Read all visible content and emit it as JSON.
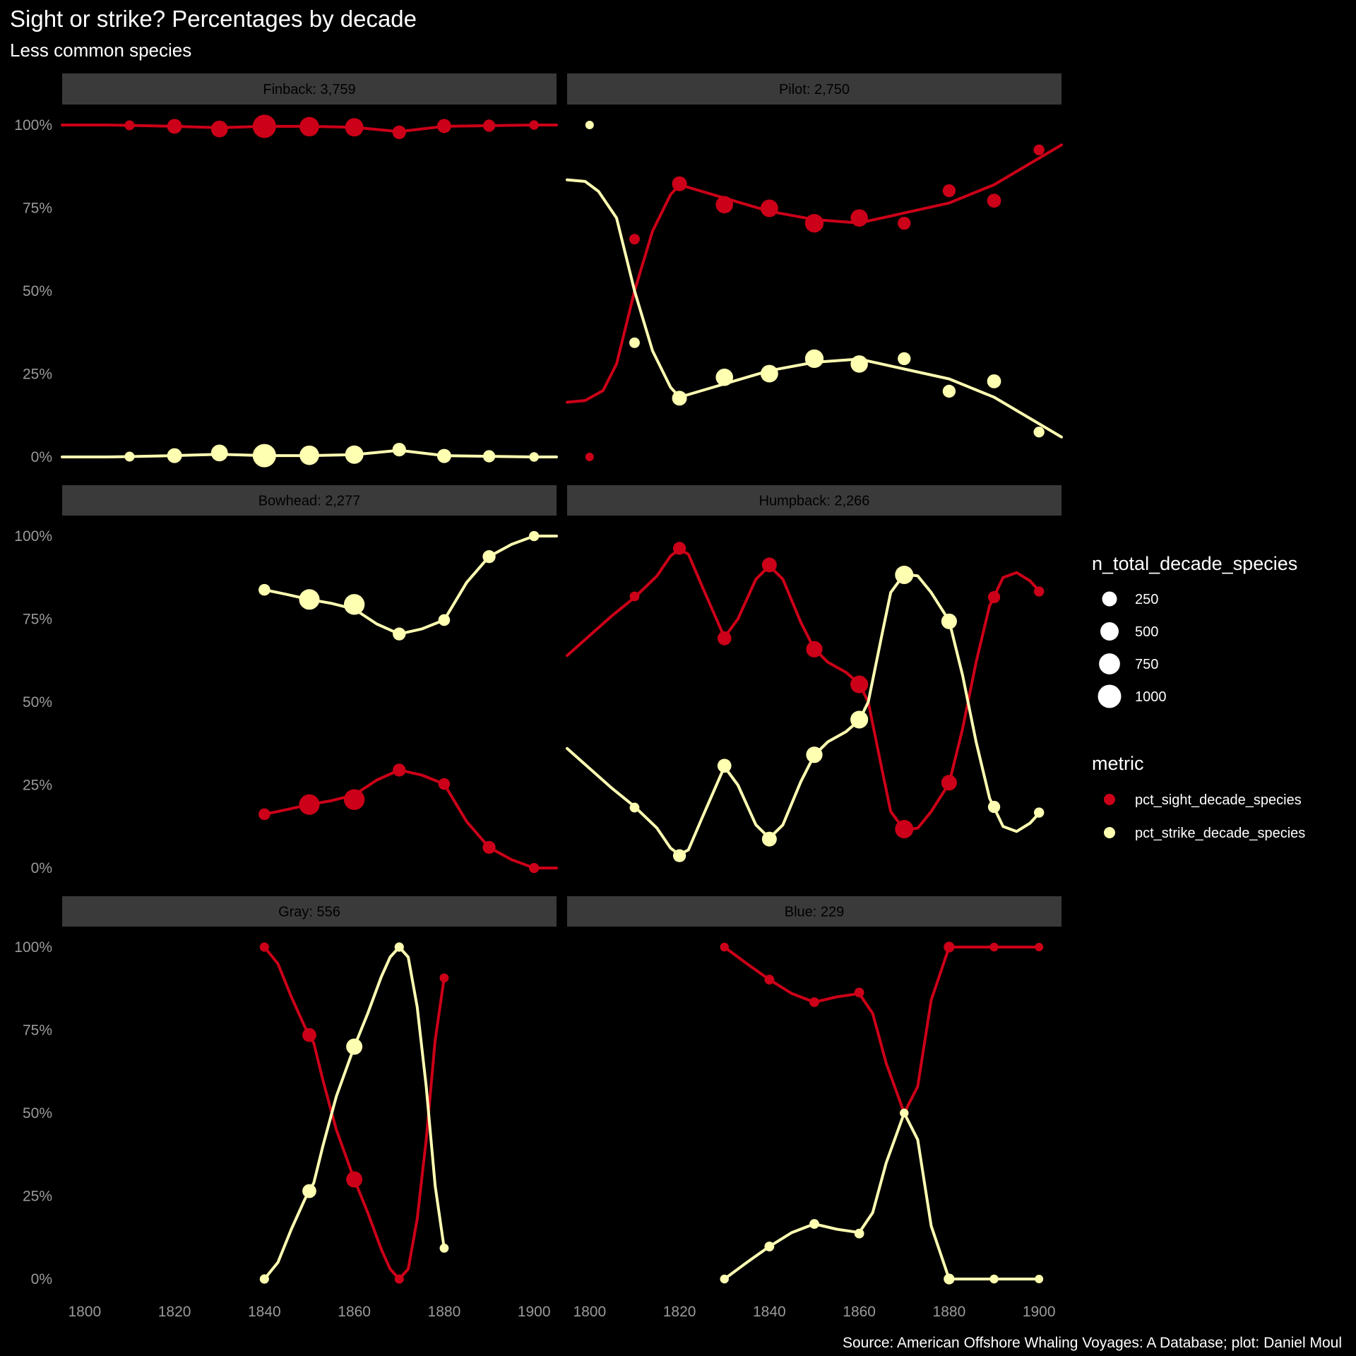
{
  "title": "Sight or strike? Percentages by decade",
  "subtitle": "Less common species",
  "caption": "Source: American Offshore Whaling Voyages: A Database; plot: Daniel Moul",
  "colors": {
    "background": "#000000",
    "strip": "#3a3a3a",
    "sight": "#cc0018",
    "strike": "#ffffb2",
    "tick_text": "#9a9a9a"
  },
  "chart_data": {
    "type": "scatter",
    "facet_by": "species",
    "x_ticks": [
      "1800",
      "1820",
      "1840",
      "1860",
      "1880",
      "1900"
    ],
    "y_ticks": [
      "0%",
      "25%",
      "50%",
      "75%",
      "100%"
    ],
    "xlim": [
      1795,
      1905
    ],
    "ylim": [
      0,
      100
    ],
    "legend": {
      "size_title": "n_total_decade_species",
      "size_breaks": [
        {
          "label": "250",
          "value": 250
        },
        {
          "label": "500",
          "value": 500
        },
        {
          "label": "750",
          "value": 750
        },
        {
          "label": "1000",
          "value": 1000
        }
      ],
      "color_title": "metric",
      "color_entries": [
        {
          "label": "pct_sight_decade_species",
          "key": "sight"
        },
        {
          "label": "pct_strike_decade_species",
          "key": "strike"
        }
      ],
      "position": "right"
    },
    "panels": [
      {
        "label": "Finback: 3,759",
        "x": [
          1810,
          1820,
          1830,
          1840,
          1850,
          1860,
          1870,
          1880,
          1890,
          1900
        ],
        "n": [
          45,
          250,
          380,
          1000,
          600,
          500,
          180,
          210,
          120,
          35
        ],
        "sight": [
          99.9,
          99.6,
          98.8,
          99.6,
          99.5,
          99.3,
          97.8,
          99.7,
          99.8,
          100
        ],
        "strike": [
          0.1,
          0.4,
          1.2,
          0.4,
          0.5,
          0.7,
          2.2,
          0.3,
          0.2,
          0
        ],
        "sight_smooth": [
          [
            1795,
            100
          ],
          [
            1805,
            100
          ],
          [
            1810,
            99.9
          ],
          [
            1820,
            99.6
          ],
          [
            1830,
            99.2
          ],
          [
            1840,
            99.6
          ],
          [
            1850,
            99.6
          ],
          [
            1860,
            99.3
          ],
          [
            1870,
            98.0
          ],
          [
            1880,
            99.6
          ],
          [
            1890,
            99.8
          ],
          [
            1900,
            100
          ],
          [
            1905,
            100
          ]
        ],
        "strike_smooth": [
          [
            1795,
            0
          ],
          [
            1805,
            0
          ],
          [
            1810,
            0.1
          ],
          [
            1820,
            0.4
          ],
          [
            1830,
            0.8
          ],
          [
            1840,
            0.4
          ],
          [
            1850,
            0.4
          ],
          [
            1860,
            0.7
          ],
          [
            1870,
            2.0
          ],
          [
            1880,
            0.4
          ],
          [
            1890,
            0.2
          ],
          [
            1900,
            0
          ],
          [
            1905,
            0
          ]
        ]
      },
      {
        "label": "Pilot: 2,750",
        "x": [
          1800,
          1810,
          1820,
          1830,
          1840,
          1850,
          1860,
          1870,
          1880,
          1890,
          1900
        ],
        "n": [
          15,
          60,
          250,
          420,
          440,
          520,
          420,
          150,
          150,
          200,
          70
        ],
        "sight": [
          0,
          65.6,
          82.3,
          76.0,
          74.9,
          70.4,
          72.0,
          70.4,
          80.2,
          77.2,
          92.5
        ],
        "strike": [
          100,
          34.4,
          17.7,
          24.0,
          25.1,
          29.6,
          28.0,
          29.6,
          19.8,
          22.8,
          7.5
        ],
        "sight_smooth": [
          [
            1795,
            16.5
          ],
          [
            1799,
            17
          ],
          [
            1803,
            20
          ],
          [
            1806,
            28
          ],
          [
            1810,
            50
          ],
          [
            1814,
            68
          ],
          [
            1818,
            79
          ],
          [
            1820,
            82
          ],
          [
            1825,
            80
          ],
          [
            1830,
            78
          ],
          [
            1840,
            74
          ],
          [
            1850,
            71.5
          ],
          [
            1860,
            70.5
          ],
          [
            1870,
            73.5
          ],
          [
            1880,
            76.5
          ],
          [
            1890,
            82
          ],
          [
            1900,
            90
          ],
          [
            1905,
            94
          ]
        ],
        "strike_smooth": [
          [
            1795,
            83.5
          ],
          [
            1799,
            83
          ],
          [
            1802,
            80
          ],
          [
            1806,
            72
          ],
          [
            1810,
            50
          ],
          [
            1814,
            32
          ],
          [
            1818,
            21
          ],
          [
            1820,
            18
          ],
          [
            1825,
            20
          ],
          [
            1830,
            22
          ],
          [
            1840,
            26
          ],
          [
            1850,
            28.5
          ],
          [
            1860,
            29.5
          ],
          [
            1870,
            26.5
          ],
          [
            1880,
            23.5
          ],
          [
            1890,
            18
          ],
          [
            1900,
            10
          ],
          [
            1905,
            6
          ]
        ]
      },
      {
        "label": "Bowhead: 2,277",
        "x": [
          1840,
          1850,
          1860,
          1870,
          1880,
          1890,
          1900
        ],
        "n": [
          100,
          700,
          720,
          150,
          100,
          150,
          50
        ],
        "sight": [
          16.2,
          19.1,
          20.6,
          29.5,
          25.3,
          6.2,
          0
        ],
        "strike": [
          83.8,
          80.9,
          79.4,
          70.5,
          74.7,
          93.8,
          100
        ],
        "sight_smooth": [
          [
            1840,
            16.2
          ],
          [
            1845,
            17.6
          ],
          [
            1850,
            19.1
          ],
          [
            1855,
            20.3
          ],
          [
            1860,
            22
          ],
          [
            1865,
            26.5
          ],
          [
            1870,
            29.5
          ],
          [
            1875,
            28
          ],
          [
            1880,
            25.3
          ],
          [
            1885,
            14
          ],
          [
            1890,
            6.2
          ],
          [
            1895,
            2.5
          ],
          [
            1900,
            0
          ],
          [
            1905,
            0
          ]
        ],
        "strike_smooth": [
          [
            1840,
            83.8
          ],
          [
            1845,
            82.4
          ],
          [
            1850,
            80.9
          ],
          [
            1855,
            79.7
          ],
          [
            1860,
            78
          ],
          [
            1865,
            73.5
          ],
          [
            1870,
            70.5
          ],
          [
            1875,
            72
          ],
          [
            1880,
            74.7
          ],
          [
            1885,
            86
          ],
          [
            1890,
            93.8
          ],
          [
            1895,
            97.5
          ],
          [
            1900,
            100
          ],
          [
            1905,
            100
          ]
        ]
      },
      {
        "label": "Humpback: 2,266",
        "x": [
          1810,
          1820,
          1830,
          1840,
          1850,
          1860,
          1870,
          1880,
          1890,
          1900
        ],
        "n": [
          40,
          150,
          200,
          250,
          350,
          450,
          500,
          300,
          120,
          50
        ],
        "sight": [
          81.8,
          96.3,
          69.2,
          91.3,
          65.9,
          55.3,
          11.7,
          25.7,
          81.6,
          83.3
        ],
        "strike": [
          18.2,
          3.7,
          30.8,
          8.7,
          34.1,
          44.7,
          88.3,
          74.3,
          18.4,
          16.7
        ],
        "sight_smooth": [
          [
            1795,
            64
          ],
          [
            1800,
            70
          ],
          [
            1805,
            76
          ],
          [
            1810,
            81.5
          ],
          [
            1815,
            88
          ],
          [
            1818,
            94
          ],
          [
            1820,
            96
          ],
          [
            1822,
            94.5
          ],
          [
            1825,
            85
          ],
          [
            1830,
            69.5
          ],
          [
            1833,
            75
          ],
          [
            1837,
            87
          ],
          [
            1840,
            91
          ],
          [
            1843,
            87
          ],
          [
            1847,
            74
          ],
          [
            1850,
            66
          ],
          [
            1853,
            62
          ],
          [
            1857,
            59
          ],
          [
            1860,
            55.5
          ],
          [
            1862,
            50
          ],
          [
            1865,
            30
          ],
          [
            1867,
            17
          ],
          [
            1870,
            11.5
          ],
          [
            1873,
            12
          ],
          [
            1876,
            17
          ],
          [
            1880,
            25.5
          ],
          [
            1883,
            42
          ],
          [
            1886,
            62
          ],
          [
            1889,
            79
          ],
          [
            1892,
            87.5
          ],
          [
            1895,
            89
          ],
          [
            1898,
            86.5
          ],
          [
            1900,
            83.5
          ]
        ],
        "strike_smooth": [
          [
            1795,
            36
          ],
          [
            1800,
            30
          ],
          [
            1805,
            24
          ],
          [
            1810,
            18.5
          ],
          [
            1815,
            12
          ],
          [
            1818,
            6
          ],
          [
            1820,
            4
          ],
          [
            1822,
            5.5
          ],
          [
            1825,
            15
          ],
          [
            1830,
            30.5
          ],
          [
            1833,
            25
          ],
          [
            1837,
            13
          ],
          [
            1840,
            9
          ],
          [
            1843,
            13
          ],
          [
            1847,
            26
          ],
          [
            1850,
            34
          ],
          [
            1853,
            38
          ],
          [
            1857,
            41
          ],
          [
            1860,
            44.5
          ],
          [
            1862,
            50
          ],
          [
            1865,
            70
          ],
          [
            1867,
            83
          ],
          [
            1870,
            88.5
          ],
          [
            1873,
            88
          ],
          [
            1876,
            83
          ],
          [
            1880,
            74.5
          ],
          [
            1883,
            58
          ],
          [
            1886,
            38
          ],
          [
            1889,
            21
          ],
          [
            1892,
            12.5
          ],
          [
            1895,
            11
          ],
          [
            1898,
            13.5
          ],
          [
            1900,
            16.5
          ]
        ]
      },
      {
        "label": "Gray: 556",
        "x": [
          1840,
          1850,
          1860,
          1870,
          1880
        ],
        "n": [
          30,
          200,
          340,
          30,
          25
        ],
        "sight": [
          100,
          73.5,
          30,
          0,
          90.7
        ],
        "strike": [
          0,
          26.5,
          70,
          100,
          9.3
        ],
        "sight_smooth": [
          [
            1840,
            100
          ],
          [
            1843,
            95
          ],
          [
            1846,
            85
          ],
          [
            1849,
            76
          ],
          [
            1851,
            71
          ],
          [
            1853,
            60
          ],
          [
            1856,
            45
          ],
          [
            1860,
            30
          ],
          [
            1863,
            20
          ],
          [
            1866,
            9
          ],
          [
            1868,
            3
          ],
          [
            1870,
            0
          ],
          [
            1872,
            3
          ],
          [
            1874,
            18
          ],
          [
            1876,
            42
          ],
          [
            1878,
            72
          ],
          [
            1880,
            90.7
          ]
        ],
        "strike_smooth": [
          [
            1840,
            0
          ],
          [
            1843,
            5
          ],
          [
            1846,
            15
          ],
          [
            1849,
            24
          ],
          [
            1851,
            29
          ],
          [
            1853,
            40
          ],
          [
            1856,
            55
          ],
          [
            1860,
            70
          ],
          [
            1863,
            80
          ],
          [
            1866,
            91
          ],
          [
            1868,
            97
          ],
          [
            1870,
            100
          ],
          [
            1872,
            97
          ],
          [
            1874,
            82
          ],
          [
            1876,
            58
          ],
          [
            1878,
            28
          ],
          [
            1880,
            9.3
          ]
        ]
      },
      {
        "label": "Blue: 229",
        "x": [
          1830,
          1840,
          1850,
          1860,
          1870,
          1880,
          1890,
          1900
        ],
        "n": [
          20,
          40,
          40,
          40,
          20,
          70,
          20,
          15
        ],
        "sight": [
          100,
          90.2,
          83.4,
          86.3,
          50,
          100,
          100,
          100
        ],
        "strike": [
          0,
          9.8,
          16.6,
          13.7,
          50,
          0,
          0,
          0
        ],
        "sight_smooth": [
          [
            1830,
            100
          ],
          [
            1835,
            95
          ],
          [
            1840,
            90.2
          ],
          [
            1845,
            86
          ],
          [
            1850,
            83.4
          ],
          [
            1855,
            85
          ],
          [
            1860,
            86
          ],
          [
            1863,
            80
          ],
          [
            1866,
            65
          ],
          [
            1870,
            50
          ],
          [
            1873,
            58
          ],
          [
            1876,
            84
          ],
          [
            1880,
            100
          ],
          [
            1885,
            100
          ],
          [
            1890,
            100
          ],
          [
            1900,
            100
          ]
        ],
        "strike_smooth": [
          [
            1830,
            0
          ],
          [
            1835,
            5
          ],
          [
            1840,
            9.8
          ],
          [
            1845,
            14
          ],
          [
            1850,
            16.6
          ],
          [
            1855,
            15
          ],
          [
            1860,
            14
          ],
          [
            1863,
            20
          ],
          [
            1866,
            35
          ],
          [
            1870,
            50
          ],
          [
            1873,
            42
          ],
          [
            1876,
            16
          ],
          [
            1880,
            0
          ],
          [
            1885,
            0
          ],
          [
            1890,
            0
          ],
          [
            1900,
            0
          ]
        ]
      }
    ]
  }
}
